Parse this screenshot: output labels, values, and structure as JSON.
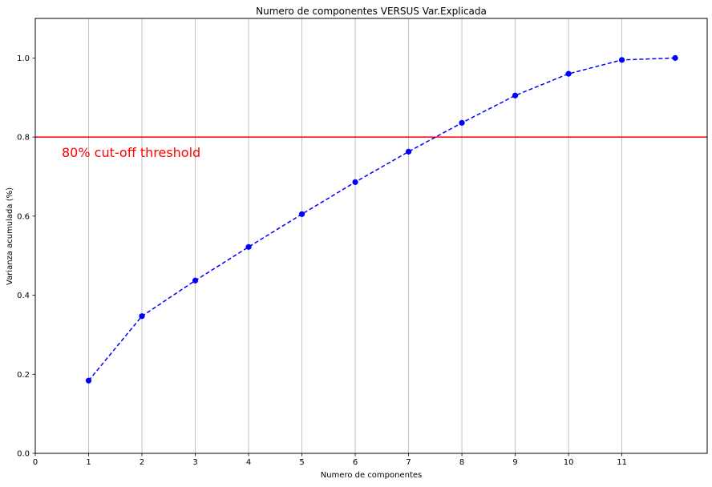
{
  "chart_data": {
    "type": "line",
    "title": "Numero de componentes VERSUS Var.Explicada",
    "xlabel": "Numero de componentes",
    "ylabel": "Varianza acumulada (%)",
    "xlim": [
      0,
      12.6
    ],
    "ylim": [
      0,
      1.1
    ],
    "xticks": [
      "0",
      "1",
      "2",
      "3",
      "4",
      "5",
      "6",
      "7",
      "8",
      "9",
      "10",
      "11"
    ],
    "yticks": [
      "0.0",
      "0.2",
      "0.4",
      "0.6",
      "0.8",
      "1.0"
    ],
    "grid": "x-only",
    "x": [
      1,
      2,
      3,
      4,
      5,
      6,
      7,
      8,
      9,
      10,
      11,
      12
    ],
    "series": [
      {
        "values": [
          0.184,
          0.347,
          0.437,
          0.522,
          0.605,
          0.686,
          0.763,
          0.836,
          0.905,
          0.96,
          0.995,
          1.0
        ],
        "color": "#0000ff",
        "linestyle": "dashed",
        "marker": "circle"
      }
    ],
    "threshold": {
      "value": 0.8,
      "color": "#ff0000",
      "label": "80% cut-off threshold"
    }
  }
}
